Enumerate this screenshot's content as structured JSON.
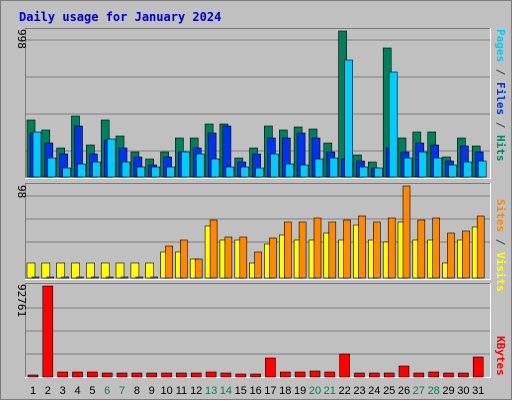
{
  "title": "Daily usage for January 2024",
  "axis_max": {
    "top": "998",
    "middle": "98",
    "bottom": "92761"
  },
  "legend": {
    "top": [
      {
        "text": "Pages",
        "color": "#00ccff"
      },
      {
        "text": " / ",
        "color": "#444444"
      },
      {
        "text": "Files",
        "color": "#0033ee"
      },
      {
        "text": " / ",
        "color": "#444444"
      },
      {
        "text": "Hits",
        "color": "#008866"
      }
    ],
    "middle": [
      {
        "text": "Sites",
        "color": "#ff8800"
      },
      {
        "text": " / ",
        "color": "#444444"
      },
      {
        "text": "Visits",
        "color": "#ffff00"
      }
    ],
    "bottom": [
      {
        "text": "KBytes",
        "color": "#ff0000"
      }
    ]
  },
  "colors": {
    "hits": "#00805a",
    "files": "#0033ee",
    "pages": "#00ccff",
    "visits": "#ffff00",
    "sites": "#ff8800",
    "kbytes": "#ff0000",
    "weekend_label": "#00805a",
    "weekday_label": "#000000"
  },
  "days": [
    "1",
    "2",
    "3",
    "4",
    "5",
    "6",
    "7",
    "8",
    "9",
    "10",
    "11",
    "12",
    "13",
    "14",
    "15",
    "16",
    "17",
    "18",
    "19",
    "20",
    "21",
    "22",
    "23",
    "24",
    "25",
    "26",
    "27",
    "28",
    "29",
    "30",
    "31"
  ],
  "weekend_days": [
    6,
    7,
    13,
    14,
    20,
    21,
    27,
    28
  ],
  "chart_data": [
    {
      "type": "bar",
      "title": "Daily usage for January 2024",
      "categories": [
        "1",
        "2",
        "3",
        "4",
        "5",
        "6",
        "7",
        "8",
        "9",
        "10",
        "11",
        "12",
        "13",
        "14",
        "15",
        "16",
        "17",
        "18",
        "19",
        "20",
        "21",
        "22",
        "23",
        "24",
        "25",
        "26",
        "27",
        "28",
        "29",
        "30",
        "31"
      ],
      "ylim": [
        0,
        998
      ],
      "series": [
        {
          "name": "Hits",
          "values": [
            390,
            320,
            200,
            420,
            220,
            390,
            280,
            170,
            120,
            170,
            270,
            270,
            360,
            360,
            130,
            200,
            350,
            320,
            340,
            330,
            230,
            998,
            150,
            100,
            880,
            270,
            310,
            310,
            140,
            270,
            210
          ]
        },
        {
          "name": "Files",
          "values": [
            300,
            230,
            160,
            350,
            160,
            250,
            200,
            140,
            80,
            140,
            170,
            200,
            300,
            350,
            100,
            160,
            270,
            270,
            300,
            270,
            170,
            120,
            110,
            60,
            200,
            170,
            230,
            220,
            110,
            210,
            170
          ]
        },
        {
          "name": "Pages",
          "values": [
            310,
            130,
            60,
            90,
            100,
            260,
            100,
            70,
            70,
            70,
            170,
            160,
            120,
            70,
            70,
            60,
            160,
            90,
            80,
            120,
            130,
            800,
            70,
            60,
            720,
            130,
            170,
            130,
            80,
            100,
            110
          ]
        }
      ]
    },
    {
      "type": "bar",
      "categories": [
        "1",
        "2",
        "3",
        "4",
        "5",
        "6",
        "7",
        "8",
        "9",
        "10",
        "11",
        "12",
        "13",
        "14",
        "15",
        "16",
        "17",
        "18",
        "19",
        "20",
        "21",
        "22",
        "23",
        "24",
        "25",
        "26",
        "27",
        "28",
        "29",
        "30",
        "31"
      ],
      "ylim": [
        0,
        98
      ],
      "series": [
        {
          "name": "Visits",
          "values": [
            16,
            16,
            16,
            16,
            16,
            16,
            16,
            16,
            16,
            28,
            28,
            20,
            55,
            40,
            40,
            16,
            36,
            46,
            40,
            40,
            48,
            40,
            56,
            40,
            38,
            60,
            40,
            40,
            16,
            40,
            54
          ]
        },
        {
          "name": "Sites",
          "values": [
            1,
            1,
            1,
            1,
            1,
            1,
            1,
            1,
            1,
            34,
            40,
            20,
            62,
            44,
            44,
            28,
            43,
            60,
            60,
            64,
            60,
            62,
            66,
            60,
            64,
            98,
            62,
            64,
            48,
            50,
            66
          ]
        }
      ]
    },
    {
      "type": "bar",
      "categories": [
        "1",
        "2",
        "3",
        "4",
        "5",
        "6",
        "7",
        "8",
        "9",
        "10",
        "11",
        "12",
        "13",
        "14",
        "15",
        "16",
        "17",
        "18",
        "19",
        "20",
        "21",
        "22",
        "23",
        "24",
        "25",
        "26",
        "27",
        "28",
        "29",
        "30",
        "31"
      ],
      "ylim": [
        0,
        92761
      ],
      "series": [
        {
          "name": "KBytes",
          "values": [
            2500,
            92761,
            5000,
            4600,
            4600,
            4200,
            4200,
            3900,
            3800,
            3800,
            4000,
            3800,
            4600,
            3800,
            3300,
            3300,
            19000,
            5500,
            5500,
            6500,
            4700,
            23000,
            3800,
            4000,
            4200,
            11000,
            4000,
            4600,
            4100,
            4400,
            20000
          ]
        }
      ]
    }
  ]
}
